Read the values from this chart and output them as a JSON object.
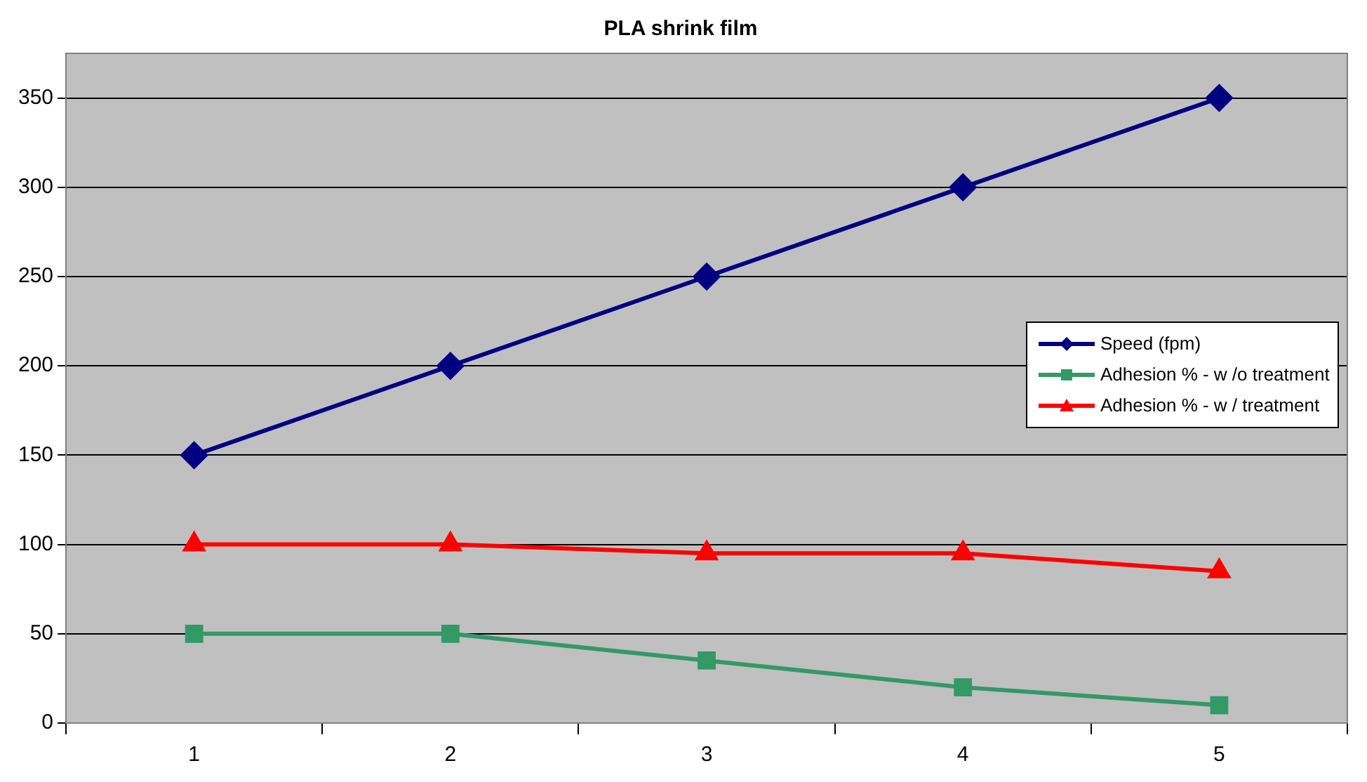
{
  "chart_data": {
    "type": "line",
    "title": "PLA shrink film",
    "categories": [
      "1",
      "2",
      "3",
      "4",
      "5"
    ],
    "series": [
      {
        "name": "Speed (fpm)",
        "color": "#000080",
        "marker": "diamond",
        "values": [
          150,
          200,
          250,
          300,
          350
        ]
      },
      {
        "name": "Adhesion % - w /o treatment",
        "color": "#339966",
        "marker": "square",
        "values": [
          50,
          50,
          35,
          20,
          10
        ]
      },
      {
        "name": "Adhesion % - w / treatment",
        "color": "#ff0000",
        "marker": "triangle",
        "values": [
          100,
          100,
          95,
          95,
          85
        ]
      }
    ],
    "ylim": [
      0,
      375
    ],
    "yticks": [
      0,
      50,
      100,
      150,
      200,
      250,
      300,
      350
    ],
    "grid": "y",
    "legend": "right",
    "line_style": "solid"
  }
}
